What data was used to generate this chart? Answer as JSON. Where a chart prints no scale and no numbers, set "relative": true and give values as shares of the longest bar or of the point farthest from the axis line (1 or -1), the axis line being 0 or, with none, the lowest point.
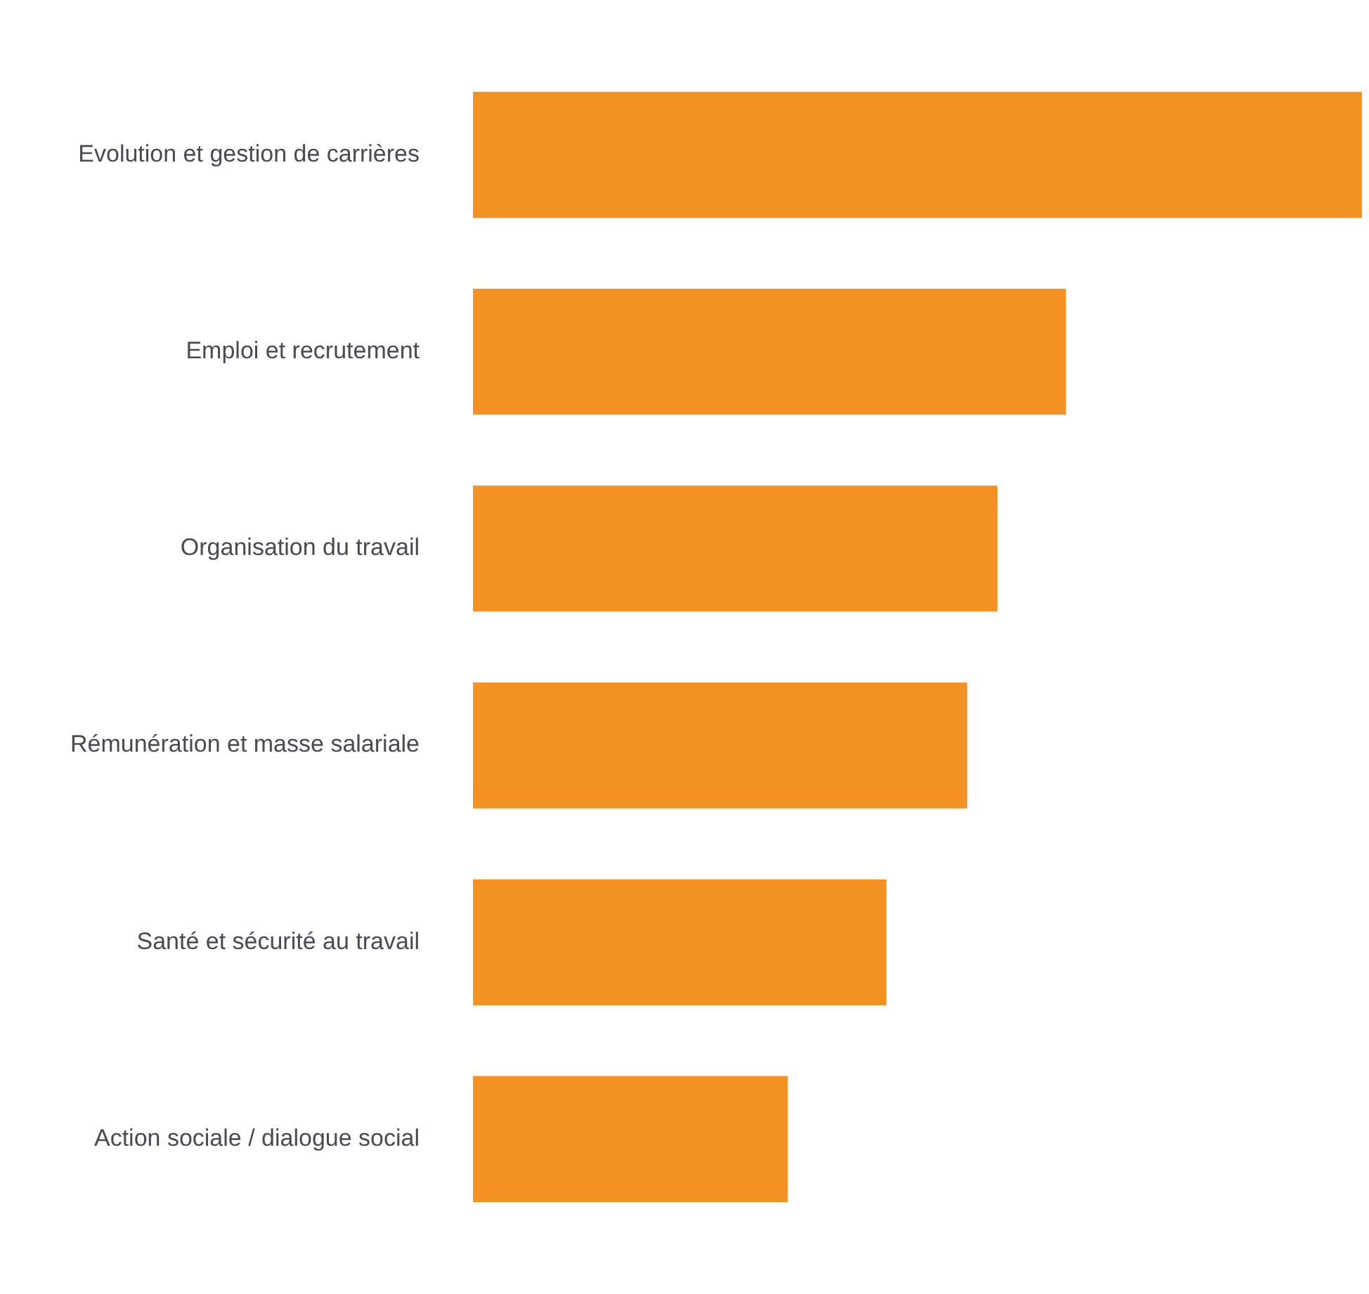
{
  "chart_data": {
    "type": "bar",
    "orientation": "horizontal",
    "relative": true,
    "categories": [
      "Evolution et gestion de carrières",
      "Emploi et recrutement",
      "Organisation du travail",
      "Rémunération et masse salariale",
      "Santé et sécurité au travail",
      "Action sociale / dialogue social"
    ],
    "values": [
      1,
      0.667,
      0.59,
      0.556,
      0.465,
      0.354
    ],
    "color": "#f39123",
    "legend": false
  }
}
